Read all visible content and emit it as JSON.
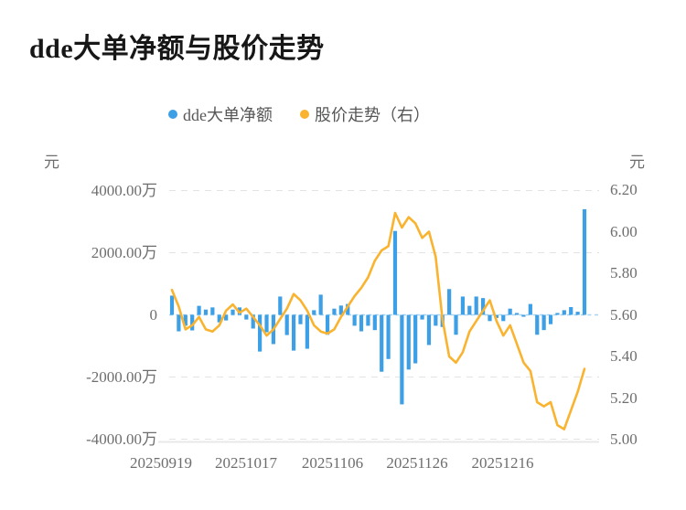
{
  "title": "dde大单净额与股价走势",
  "colors": {
    "bar": "#3d9fe6",
    "line": "#f9b32f",
    "grid": "#e3e3e3",
    "axis_line": "#e8e8e8",
    "zero_line": "#a9d4f3",
    "text": "#6e6e6e",
    "title_text": "#171717"
  },
  "chart_data": {
    "type": "bar+line combo",
    "title": "dde大单净额与股价走势",
    "legend_position": "top-center",
    "grid": "horizontal dashed",
    "num_points": 62,
    "x_axis": {
      "tick_labels": [
        "20250919",
        "20251017",
        "20251106",
        "20251126",
        "20251216"
      ]
    },
    "left_axis": {
      "unit": "元",
      "ticks": [
        {
          "label": "4000.00万",
          "value": 4000
        },
        {
          "label": "2000.00万",
          "value": 2000
        },
        {
          "label": "0",
          "value": 0
        },
        {
          "label": "-2000.00万",
          "value": -2000
        },
        {
          "label": "-4000.00万",
          "value": -4000
        }
      ],
      "range_wan": [
        -4000,
        4000
      ]
    },
    "right_axis": {
      "unit": "元",
      "ticks": [
        {
          "label": "6.20",
          "value": 6.2
        },
        {
          "label": "6.00",
          "value": 6.0
        },
        {
          "label": "5.80",
          "value": 5.8
        },
        {
          "label": "5.60",
          "value": 5.6
        },
        {
          "label": "5.40",
          "value": 5.4
        },
        {
          "label": "5.20",
          "value": 5.2
        },
        {
          "label": "5.00",
          "value": 5.0
        }
      ],
      "range": [
        5.0,
        6.2
      ]
    },
    "series": [
      {
        "name": "dde大单净额",
        "type": "bar",
        "y_axis": "left",
        "unit": "万元",
        "color": "#3d9fe6",
        "values": [
          620,
          -530,
          -350,
          -500,
          290,
          170,
          240,
          -240,
          -180,
          170,
          240,
          -150,
          -440,
          -1180,
          -560,
          -940,
          590,
          -650,
          -1150,
          -300,
          -1090,
          150,
          650,
          -640,
          200,
          300,
          350,
          -350,
          -530,
          -350,
          -490,
          -1830,
          -1420,
          2700,
          -2880,
          -1760,
          -1560,
          -150,
          -970,
          -350,
          -390,
          830,
          -640,
          590,
          290,
          590,
          540,
          -200,
          -100,
          -200,
          200,
          60,
          -60,
          350,
          -640,
          -490,
          -300,
          60,
          150,
          250,
          100,
          3400
        ]
      },
      {
        "name": "股价走势（右）",
        "type": "line",
        "y_axis": "right",
        "unit": "元",
        "color": "#f9b32f",
        "values": [
          5.72,
          5.64,
          5.53,
          5.55,
          5.59,
          5.53,
          5.52,
          5.55,
          5.62,
          5.65,
          5.61,
          5.63,
          5.59,
          5.55,
          5.5,
          5.53,
          5.58,
          5.63,
          5.7,
          5.67,
          5.62,
          5.55,
          5.52,
          5.51,
          5.53,
          5.59,
          5.64,
          5.69,
          5.73,
          5.78,
          5.86,
          5.91,
          5.93,
          6.09,
          6.02,
          6.07,
          6.04,
          5.97,
          6.0,
          5.88,
          5.58,
          5.4,
          5.37,
          5.42,
          5.52,
          5.57,
          5.62,
          5.67,
          5.57,
          5.5,
          5.55,
          5.46,
          5.37,
          5.33,
          5.18,
          5.16,
          5.18,
          5.07,
          5.05,
          5.14,
          5.23,
          5.34
        ]
      }
    ]
  }
}
